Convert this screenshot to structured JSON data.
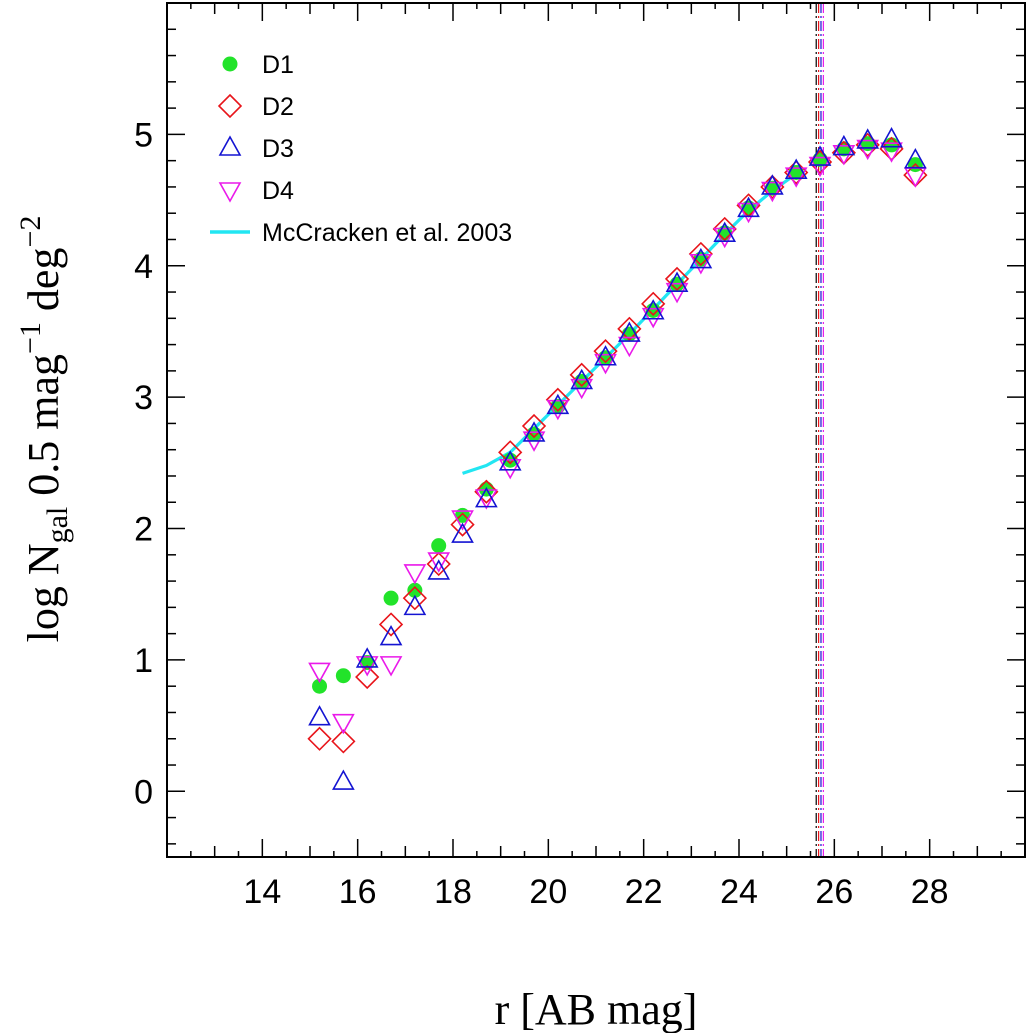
{
  "chart_data": {
    "type": "scatter",
    "xlabel": "r [AB mag]",
    "ylabel": {
      "prefix": "log N",
      "subscript": "gal",
      "middle": " 0.5 mag",
      "sup1": "−1",
      "deg": " deg",
      "sup2": "−2"
    },
    "xlim": [
      12,
      30
    ],
    "ylim": [
      -0.5,
      6.0
    ],
    "xticks": [
      14,
      16,
      18,
      20,
      22,
      24,
      26,
      28
    ],
    "yticks": [
      0,
      1,
      2,
      3,
      4,
      5
    ],
    "legend_position": "top-left",
    "grid": false,
    "series": [
      {
        "name": "D1",
        "marker": "filled-circle",
        "color": "#22e32a",
        "x": [
          15.2,
          15.7,
          16.2,
          16.7,
          17.2,
          17.7,
          18.2,
          18.7,
          19.2,
          19.7,
          20.2,
          20.7,
          21.2,
          21.7,
          22.2,
          22.7,
          23.2,
          23.7,
          24.2,
          24.7,
          25.2,
          25.7,
          26.2,
          26.7,
          27.2,
          27.7
        ],
        "y": [
          0.8,
          0.88,
          0.98,
          1.47,
          1.53,
          1.87,
          2.1,
          2.3,
          2.52,
          2.72,
          2.93,
          3.12,
          3.3,
          3.48,
          3.66,
          3.86,
          4.05,
          4.25,
          4.44,
          4.59,
          4.71,
          4.81,
          4.89,
          4.93,
          4.92,
          4.77
        ]
      },
      {
        "name": "D2",
        "marker": "open-diamond",
        "color": "#e8141a",
        "x": [
          15.2,
          15.7,
          16.2,
          16.7,
          17.2,
          17.7,
          18.2,
          18.7,
          19.2,
          19.7,
          20.2,
          20.7,
          21.2,
          21.7,
          22.2,
          22.7,
          23.2,
          23.7,
          24.2,
          24.7,
          25.2,
          25.7,
          26.2,
          26.7,
          27.2,
          27.7
        ],
        "y": [
          0.4,
          0.38,
          0.87,
          1.27,
          1.47,
          1.73,
          2.03,
          2.28,
          2.58,
          2.78,
          2.98,
          3.17,
          3.35,
          3.52,
          3.71,
          3.9,
          4.09,
          4.28,
          4.46,
          4.6,
          4.71,
          4.79,
          4.86,
          4.92,
          4.89,
          4.69
        ]
      },
      {
        "name": "D3",
        "marker": "open-triangle-up",
        "color": "#1414d2",
        "x": [
          15.2,
          15.7,
          16.2,
          16.7,
          17.2,
          17.7,
          18.2,
          18.7,
          19.2,
          19.7,
          20.2,
          20.7,
          21.2,
          21.7,
          22.2,
          22.7,
          23.2,
          23.7,
          24.2,
          24.7,
          25.2,
          25.7,
          26.2,
          26.7,
          27.2,
          27.7
        ],
        "y": [
          0.56,
          0.07,
          1.0,
          1.17,
          1.4,
          1.67,
          1.95,
          2.22,
          2.5,
          2.72,
          2.93,
          3.12,
          3.3,
          3.48,
          3.65,
          3.86,
          4.04,
          4.24,
          4.43,
          4.6,
          4.72,
          4.82,
          4.9,
          4.95,
          4.96,
          4.8
        ]
      },
      {
        "name": "D4",
        "marker": "open-triangle-down",
        "color": "#ea1aea",
        "x": [
          15.2,
          15.7,
          16.2,
          16.7,
          17.2,
          17.7,
          18.2,
          18.7,
          19.2,
          19.7,
          20.2,
          20.7,
          21.2,
          21.7,
          22.2,
          22.7,
          23.2,
          23.7,
          24.2,
          24.7,
          25.2,
          25.7,
          26.2,
          26.7,
          27.2,
          27.7
        ],
        "y": [
          0.92,
          0.53,
          0.97,
          0.97,
          1.67,
          1.76,
          2.08,
          2.24,
          2.47,
          2.68,
          2.92,
          3.08,
          3.27,
          3.4,
          3.62,
          3.81,
          4.03,
          4.23,
          4.42,
          4.58,
          4.69,
          4.77,
          4.86,
          4.9,
          4.88,
          4.69
        ]
      },
      {
        "name": "McCracken et al. 2003",
        "marker": "line",
        "color": "#22e6f2",
        "x": [
          18.2,
          18.7,
          19.2,
          19.7,
          20.2,
          20.7,
          21.2,
          21.7,
          22.2,
          22.7,
          23.2,
          23.7,
          24.2,
          24.7,
          25.2
        ],
        "y": [
          2.42,
          2.48,
          2.58,
          2.76,
          2.94,
          3.12,
          3.3,
          3.48,
          3.67,
          3.86,
          4.05,
          4.24,
          4.42,
          4.57,
          4.7
        ]
      }
    ],
    "vlines": [
      {
        "x": 25.62,
        "color": "#000000"
      },
      {
        "x": 25.67,
        "color": "#e8141a"
      },
      {
        "x": 25.72,
        "color": "#1414d2"
      },
      {
        "x": 25.77,
        "color": "#ea1aea"
      }
    ]
  }
}
